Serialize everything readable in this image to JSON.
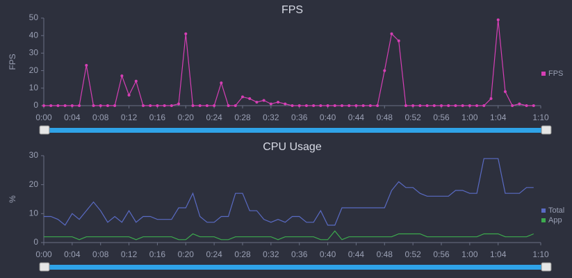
{
  "chart_data": [
    {
      "type": "line",
      "title": "FPS",
      "y_label": "FPS",
      "x": [
        0,
        1,
        2,
        3,
        4,
        5,
        6,
        7,
        8,
        9,
        10,
        11,
        12,
        13,
        14,
        15,
        16,
        17,
        18,
        19,
        20,
        21,
        22,
        23,
        24,
        25,
        26,
        27,
        28,
        29,
        30,
        31,
        32,
        33,
        34,
        35,
        36,
        37,
        38,
        39,
        40,
        41,
        42,
        43,
        44,
        45,
        46,
        47,
        48,
        49,
        50,
        51,
        52,
        53,
        54,
        55,
        56,
        57,
        58,
        59,
        60,
        61,
        62,
        63,
        64,
        65,
        66,
        67,
        68,
        69
      ],
      "series": [
        {
          "name": "FPS",
          "color": "#d63fb5",
          "markers": true,
          "values": [
            0,
            0,
            0,
            0,
            0,
            0,
            23,
            0,
            0,
            0,
            0,
            17,
            6,
            14,
            0,
            0,
            0,
            0,
            0,
            1,
            41,
            0,
            0,
            0,
            0,
            13,
            0,
            0,
            5,
            4,
            2,
            3,
            1,
            2,
            1,
            0,
            0,
            0,
            0,
            0,
            0,
            0,
            0,
            0,
            0,
            0,
            0,
            0,
            20,
            41,
            37,
            0,
            0,
            0,
            0,
            0,
            0,
            0,
            0,
            0,
            0,
            0,
            0,
            4,
            49,
            8,
            0,
            1,
            0,
            0
          ]
        }
      ],
      "xlim": [
        0,
        70
      ],
      "xticks": [
        {
          "value": 0,
          "label": "0:00"
        },
        {
          "value": 4,
          "label": "0:04"
        },
        {
          "value": 8,
          "label": "0:08"
        },
        {
          "value": 12,
          "label": "0:12"
        },
        {
          "value": 16,
          "label": "0:16"
        },
        {
          "value": 20,
          "label": "0:20"
        },
        {
          "value": 24,
          "label": "0:24"
        },
        {
          "value": 28,
          "label": "0:28"
        },
        {
          "value": 32,
          "label": "0:32"
        },
        {
          "value": 36,
          "label": "0:36"
        },
        {
          "value": 40,
          "label": "0:40"
        },
        {
          "value": 44,
          "label": "0:44"
        },
        {
          "value": 48,
          "label": "0:48"
        },
        {
          "value": 52,
          "label": "0:52"
        },
        {
          "value": 56,
          "label": "0:56"
        },
        {
          "value": 60,
          "label": "1:00"
        },
        {
          "value": 64,
          "label": "1:04"
        },
        {
          "value": 70,
          "label": "1:10"
        }
      ],
      "ylim": [
        0,
        50
      ],
      "yticks": [
        0,
        10,
        20,
        30,
        40,
        50
      ],
      "legend": "right"
    },
    {
      "type": "line",
      "title": "CPU Usage",
      "y_label": "%",
      "x": [
        0,
        1,
        2,
        3,
        4,
        5,
        6,
        7,
        8,
        9,
        10,
        11,
        12,
        13,
        14,
        15,
        16,
        17,
        18,
        19,
        20,
        21,
        22,
        23,
        24,
        25,
        26,
        27,
        28,
        29,
        30,
        31,
        32,
        33,
        34,
        35,
        36,
        37,
        38,
        39,
        40,
        41,
        42,
        43,
        44,
        45,
        46,
        47,
        48,
        49,
        50,
        51,
        52,
        53,
        54,
        55,
        56,
        57,
        58,
        59,
        60,
        61,
        62,
        63,
        64,
        65,
        66,
        67,
        68,
        69
      ],
      "series": [
        {
          "name": "Total",
          "color": "#5a6bc4",
          "markers": false,
          "values": [
            9,
            9,
            8,
            6,
            10,
            8,
            11,
            14,
            11,
            7,
            9,
            7,
            11,
            7,
            9,
            9,
            8,
            8,
            8,
            12,
            12,
            17,
            9,
            7,
            7,
            9,
            9,
            17,
            17,
            11,
            11,
            8,
            7,
            8,
            7,
            9,
            9,
            7,
            7,
            11,
            6,
            6,
            12,
            12,
            12,
            12,
            12,
            12,
            12,
            18,
            21,
            19,
            19,
            17,
            16,
            16,
            16,
            16,
            18,
            18,
            17,
            17,
            29,
            29,
            29,
            17,
            17,
            17,
            19,
            19
          ]
        },
        {
          "name": "App",
          "color": "#3dab4e",
          "markers": false,
          "values": [
            2,
            2,
            2,
            2,
            2,
            1,
            2,
            2,
            2,
            2,
            2,
            2,
            2,
            1,
            2,
            2,
            2,
            2,
            2,
            1,
            1,
            3,
            2,
            2,
            2,
            1,
            1,
            2,
            2,
            2,
            2,
            2,
            2,
            1,
            2,
            2,
            2,
            2,
            2,
            1,
            1,
            4,
            1,
            2,
            2,
            2,
            2,
            2,
            2,
            2,
            3,
            3,
            3,
            3,
            2,
            2,
            2,
            2,
            2,
            2,
            2,
            2,
            3,
            3,
            3,
            2,
            2,
            2,
            2,
            3
          ]
        }
      ],
      "xlim": [
        0,
        70
      ],
      "xticks": [
        {
          "value": 0,
          "label": "0:00"
        },
        {
          "value": 4,
          "label": "0:04"
        },
        {
          "value": 8,
          "label": "0:08"
        },
        {
          "value": 12,
          "label": "0:12"
        },
        {
          "value": 16,
          "label": "0:16"
        },
        {
          "value": 20,
          "label": "0:20"
        },
        {
          "value": 24,
          "label": "0:24"
        },
        {
          "value": 28,
          "label": "0:28"
        },
        {
          "value": 32,
          "label": "0:32"
        },
        {
          "value": 36,
          "label": "0:36"
        },
        {
          "value": 40,
          "label": "0:40"
        },
        {
          "value": 44,
          "label": "0:44"
        },
        {
          "value": 48,
          "label": "0:48"
        },
        {
          "value": 52,
          "label": "0:52"
        },
        {
          "value": 56,
          "label": "0:56"
        },
        {
          "value": 60,
          "label": "1:00"
        },
        {
          "value": 64,
          "label": "1:04"
        },
        {
          "value": 70,
          "label": "1:10"
        }
      ],
      "ylim": [
        0,
        30
      ],
      "yticks": [
        0,
        10,
        20,
        30
      ],
      "legend": "right"
    }
  ]
}
